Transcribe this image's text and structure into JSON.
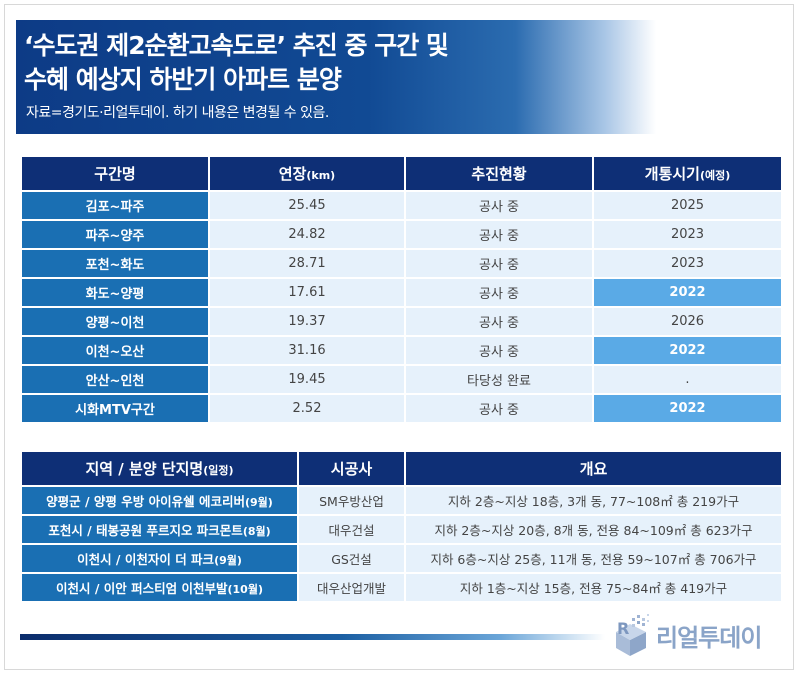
{
  "header": {
    "title_line1": "‘수도권 제2순환고속도로’ 추진 중 구간 및",
    "title_line2": "수혜 예상지 하반기 아파트 분양",
    "subtitle": "자료=경기도·리얼투데이. 하기 내용은 변경될 수 있음."
  },
  "colors": {
    "header_navy": "#0e2f76",
    "name_cell_blue": "#1a6fb3",
    "highlight_blue": "#5aaae6",
    "cell_light": "#e6f1fb"
  },
  "sections_table": {
    "columns": [
      "구간명",
      "연장",
      "추진현황",
      "개통시기"
    ],
    "column_suffixes": [
      "",
      "(km)",
      "",
      "(예정)"
    ],
    "rows": [
      {
        "name": "김포~파주",
        "length": "25.45",
        "status": "공사 중",
        "opening": "2025",
        "highlight": false
      },
      {
        "name": "파주~양주",
        "length": "24.82",
        "status": "공사 중",
        "opening": "2023",
        "highlight": false
      },
      {
        "name": "포천~화도",
        "length": "28.71",
        "status": "공사 중",
        "opening": "2023",
        "highlight": false
      },
      {
        "name": "화도~양평",
        "length": "17.61",
        "status": "공사 중",
        "opening": "2022",
        "highlight": true
      },
      {
        "name": "양평~이천",
        "length": "19.37",
        "status": "공사 중",
        "opening": "2026",
        "highlight": false
      },
      {
        "name": "이천~오산",
        "length": "31.16",
        "status": "공사 중",
        "opening": "2022",
        "highlight": true
      },
      {
        "name": "안산~인천",
        "length": "19.45",
        "status": "타당성 완료",
        "opening": ".",
        "highlight": false
      },
      {
        "name": "시화MTV구간",
        "length": "2.52",
        "status": "공사 중",
        "opening": "2022",
        "highlight": true
      }
    ]
  },
  "apartments_table": {
    "columns": [
      "지역 / 분양 단지명",
      "시공사",
      "개요"
    ],
    "column_suffixes": [
      "(일정)",
      "",
      ""
    ],
    "rows": [
      {
        "name": "양평군 / 양평 우방 아이유쉘 에코리버",
        "schedule": "(9월)",
        "builder": "SM우방산업",
        "summary": "지하 2층~지상 18층, 3개 동, 77~108㎡ 총 219가구"
      },
      {
        "name": "포천시 / 태봉공원 푸르지오 파크몬트",
        "schedule": "(8월)",
        "builder": "대우건설",
        "summary": "지하 2층~지상 20층, 8개 동, 전용 84~109㎡ 총 623가구"
      },
      {
        "name": "이천시 / 이천자이 더 파크",
        "schedule": "(9월)",
        "builder": "GS건설",
        "summary": "지하 6층~지상 25층, 11개 동, 전용 59~107㎡ 총 706가구"
      },
      {
        "name": "이천시 / 이안 퍼스티엄 이천부발",
        "schedule": "(10월)",
        "builder": "대우산업개발",
        "summary": "지하 1층~지상 15층, 전용 75~84㎡ 총 419가구"
      }
    ]
  },
  "footer": {
    "logo_text": "리얼투데이",
    "logo_icon": "realtoday-logo-icon"
  }
}
